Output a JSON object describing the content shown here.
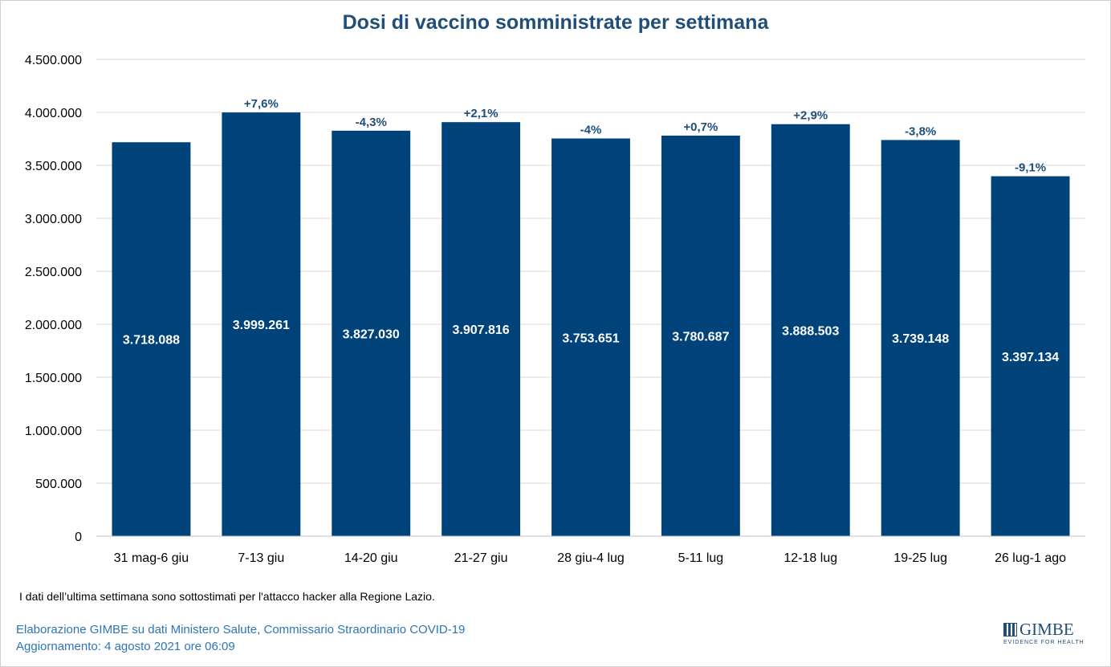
{
  "chart_data": {
    "type": "bar",
    "title": "Dosi di vaccino somministrate per settimana",
    "categories": [
      "31 mag-6 giu",
      "7-13 giu",
      "14-20 giu",
      "21-27 giu",
      "28 giu-4 lug",
      "5-11 lug",
      "12-18 lug",
      "19-25 lug",
      "26 lug-1 ago"
    ],
    "values": [
      3718088,
      3999261,
      3827030,
      3907816,
      3753651,
      3780687,
      3888503,
      3739148,
      3397134
    ],
    "value_labels": [
      "3.718.088",
      "3.999.261",
      "3.827.030",
      "3.907.816",
      "3.753.651",
      "3.780.687",
      "3.888.503",
      "3.739.148",
      "3.397.134"
    ],
    "change_labels": [
      "",
      "+7,6%",
      "-4,3%",
      "+2,1%",
      "-4%",
      "+0,7%",
      "+2,9%",
      "-3,8%",
      "-9,1%"
    ],
    "yticks": [
      0,
      500000,
      1000000,
      1500000,
      2000000,
      2500000,
      3000000,
      3500000,
      4000000,
      4500000
    ],
    "ytick_labels": [
      "0",
      "500.000",
      "1.000.000",
      "1.500.000",
      "2.000.000",
      "2.500.000",
      "3.000.000",
      "3.500.000",
      "4.000.000",
      "4.500.000"
    ],
    "ylim": [
      0,
      4500000
    ],
    "grid": true,
    "xlabel": "",
    "ylabel": "",
    "bar_color": "#00427a",
    "grid_color": "#d9d9d9",
    "change_label_color": "#1f4e79"
  },
  "footnote": "I dati dell’ultima settimana sono sottostimati per l'attacco hacker alla Regione Lazio.",
  "source": "Elaborazione GIMBE su dati Ministero Salute, Commissario Straordinario COVID-19",
  "updated": "Aggiornamento: 4 agosto 2021 ore 06:09",
  "logo": {
    "name": "GIMBE",
    "tagline": "EVIDENCE FOR HEALTH"
  }
}
